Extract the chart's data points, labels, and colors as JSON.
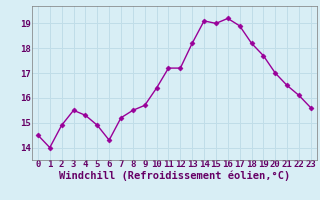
{
  "x": [
    0,
    1,
    2,
    3,
    4,
    5,
    6,
    7,
    8,
    9,
    10,
    11,
    12,
    13,
    14,
    15,
    16,
    17,
    18,
    19,
    20,
    21,
    22,
    23
  ],
  "y": [
    14.5,
    14.0,
    14.9,
    15.5,
    15.3,
    14.9,
    14.3,
    15.2,
    15.5,
    15.7,
    16.4,
    17.2,
    17.2,
    18.2,
    19.1,
    19.0,
    19.2,
    18.9,
    18.2,
    17.7,
    17.0,
    16.5,
    16.1,
    15.6
  ],
  "line_color": "#990099",
  "marker": "D",
  "marker_size": 2.5,
  "line_width": 1.0,
  "xlabel": "Windchill (Refroidissement éolien,°C)",
  "xlabel_fontsize": 7.5,
  "xlim": [
    -0.5,
    23.5
  ],
  "ylim": [
    13.5,
    19.7
  ],
  "yticks": [
    14,
    15,
    16,
    17,
    18,
    19
  ],
  "xticks": [
    0,
    1,
    2,
    3,
    4,
    5,
    6,
    7,
    8,
    9,
    10,
    11,
    12,
    13,
    14,
    15,
    16,
    17,
    18,
    19,
    20,
    21,
    22,
    23
  ],
  "tick_fontsize": 6.5,
  "background_color": "#d8eef5",
  "grid_color": "#c0dde8",
  "grid_linewidth": 0.7,
  "text_color": "#660066",
  "spine_color": "#7a7a7a"
}
